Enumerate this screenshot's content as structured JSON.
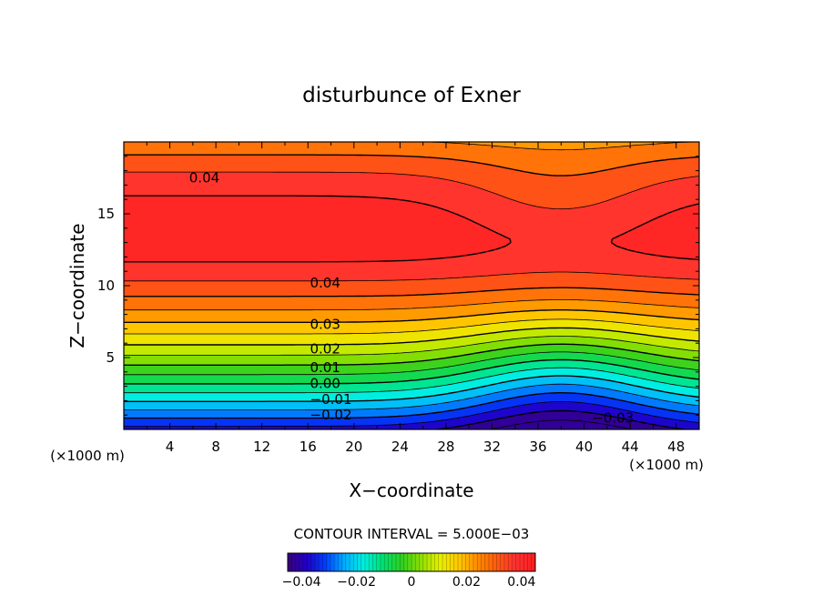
{
  "chart_data": {
    "type": "heatmap",
    "subtype": "filled contour",
    "title": "disturbunce of Exner",
    "xlabel": "X−coordinate",
    "ylabel": "Z−coordinate",
    "x_unit": "(×1000 m)",
    "z_unit": "(×1000 m)",
    "xlim": [
      0,
      50
    ],
    "ylim": [
      0,
      20
    ],
    "x_ticks": [
      "4",
      "8",
      "12",
      "16",
      "20",
      "24",
      "28",
      "32",
      "36",
      "40",
      "44",
      "48"
    ],
    "y_ticks": [
      "5",
      "10",
      "15"
    ],
    "contour_interval_text": "CONTOUR INTERVAL = 5.000E−03",
    "contour_interval": 0.005,
    "value_range": [
      -0.045,
      0.045
    ],
    "contour_labels": [
      {
        "text": "0.04",
        "x": 7,
        "y": 17.5
      },
      {
        "text": "0.04",
        "x": 17.5,
        "y": 10.2
      },
      {
        "text": "0.03",
        "x": 17.5,
        "y": 7.3
      },
      {
        "text": "0.02",
        "x": 17.5,
        "y": 5.6
      },
      {
        "text": "0.01",
        "x": 17.5,
        "y": 4.3
      },
      {
        "text": "0.00",
        "x": 17.5,
        "y": 3.2
      },
      {
        "text": "−0.01",
        "x": 18,
        "y": 2.1
      },
      {
        "text": "−0.02",
        "x": 18,
        "y": 1.0
      },
      {
        "text": "−0.03",
        "x": 42.5,
        "y": 0.8
      }
    ],
    "colorbar": {
      "ticks": [
        "−0.04",
        "−0.02",
        "0",
        "0.02",
        "0.04"
      ],
      "tick_values": [
        -0.04,
        -0.02,
        0,
        0.02,
        0.04
      ],
      "colormap": "rainbow",
      "colors": [
        "#3a007a",
        "#2000c8",
        "#0040ff",
        "#00b0ff",
        "#00f0e0",
        "#00e070",
        "#30d020",
        "#90e000",
        "#e8f000",
        "#ffc800",
        "#ff8a00",
        "#ff5a10",
        "#ff3030",
        "#ff2020"
      ]
    },
    "grid": false,
    "legend": "bottom (colorbar)"
  }
}
